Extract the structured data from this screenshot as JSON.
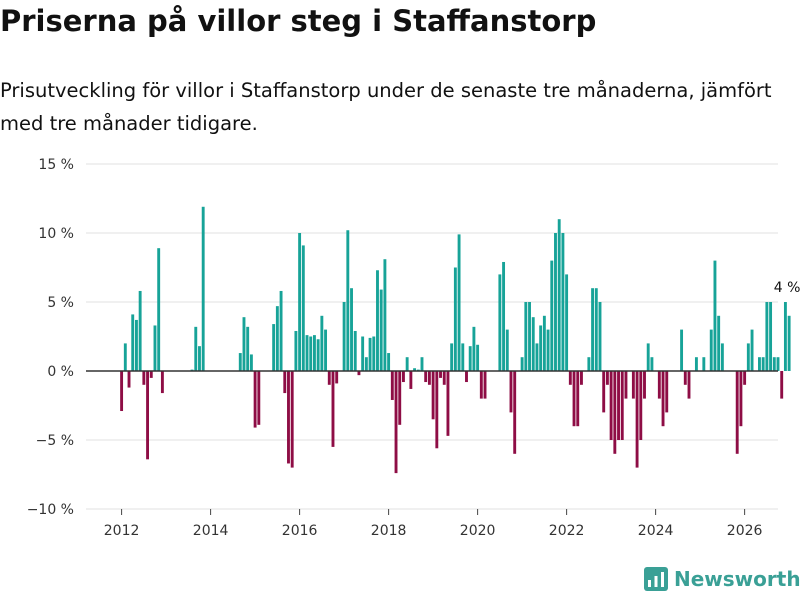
{
  "header": {
    "title": "Priserna på villor steg i Staffanstorp",
    "subtitle": "Prisutveckling för villor i Staffanstorp under de senaste tre månaderna, jämfört med tre månader tidigare."
  },
  "brand": {
    "name": "Newsworthy",
    "icon": "newsworthy-logo-icon"
  },
  "colors": {
    "positive": "#17a398",
    "negative": "#8e0d45",
    "grid": "#e0e0e0",
    "zero": "#333333"
  },
  "chart_data": {
    "type": "bar",
    "title": "Priserna på villor steg i Staffanstorp",
    "xlabel": "",
    "ylabel": "",
    "ylim": [
      -10,
      15
    ],
    "xlim": [
      2011.2,
      2026.75
    ],
    "y_ticks": [
      -10,
      -5,
      0,
      5,
      10,
      15
    ],
    "y_tick_labels": [
      "−10 %",
      "−5 %",
      "0 %",
      "5 %",
      "10 %",
      "15 %"
    ],
    "x_ticks": [
      2012,
      2014,
      2016,
      2018,
      2020,
      2022,
      2024,
      2026
    ],
    "x_tick_labels": [
      "2012",
      "2014",
      "2016",
      "2018",
      "2020",
      "2022",
      "2024",
      "2026"
    ],
    "grid": true,
    "start_month": "2012-01",
    "frequency": "monthly",
    "values": [
      -2.9,
      2.0,
      -1.2,
      4.1,
      3.7,
      5.8,
      -1.0,
      -6.4,
      -0.5,
      3.3,
      8.9,
      -1.6,
      0,
      0,
      0,
      0,
      0,
      0,
      0,
      0.1,
      3.2,
      1.8,
      11.9,
      0,
      0,
      0,
      0,
      0,
      0,
      0,
      0,
      0,
      1.3,
      3.9,
      3.2,
      1.2,
      -4.1,
      -3.9,
      0,
      0,
      0,
      3.4,
      4.7,
      5.8,
      -1.6,
      -6.7,
      -7.0,
      2.9,
      10.0,
      9.1,
      2.6,
      2.5,
      2.6,
      2.3,
      4.0,
      3.0,
      -1.0,
      -5.5,
      -0.9,
      0,
      5.0,
      10.2,
      6.0,
      2.9,
      -0.3,
      2.5,
      1.0,
      2.4,
      2.5,
      7.3,
      5.9,
      8.1,
      1.3,
      -2.1,
      -7.4,
      -3.9,
      -0.8,
      1.0,
      -1.3,
      0.2,
      0.1,
      1.0,
      -0.8,
      -1.0,
      -3.5,
      -5.6,
      -0.5,
      -1.0,
      -4.7,
      2.0,
      7.5,
      9.9,
      2.0,
      -0.8,
      1.8,
      3.2,
      1.9,
      -2.0,
      -2.0,
      0,
      0,
      0,
      7.0,
      7.9,
      3.0,
      -3.0,
      -6.0,
      0,
      1.0,
      5.0,
      5.0,
      3.9,
      2.0,
      3.3,
      4.0,
      3.0,
      8.0,
      10.0,
      11.0,
      10.0,
      7.0,
      -1.0,
      -4.0,
      -4.0,
      -1.0,
      0,
      1.0,
      6.0,
      6.0,
      5.0,
      -3.0,
      -1.0,
      -5.0,
      -6.0,
      -5.0,
      -5.0,
      -2.0,
      0,
      -2.0,
      -7.0,
      -5.0,
      -2.0,
      2.0,
      1.0,
      0,
      -2.0,
      -4.0,
      -3.0,
      0,
      0,
      0,
      3.0,
      -1.0,
      -2.0,
      0,
      1.0,
      0,
      1.0,
      0,
      3.0,
      8.0,
      4.0,
      2.0,
      0,
      0,
      0,
      -6.0,
      -4.0,
      -1.0,
      2.0,
      3.0,
      0,
      1.0,
      1.0,
      5.0,
      5.0,
      1.0,
      1.0,
      -2.0,
      5.0,
      4.0
    ],
    "annotation": {
      "text": "4 %",
      "target": "last"
    }
  }
}
